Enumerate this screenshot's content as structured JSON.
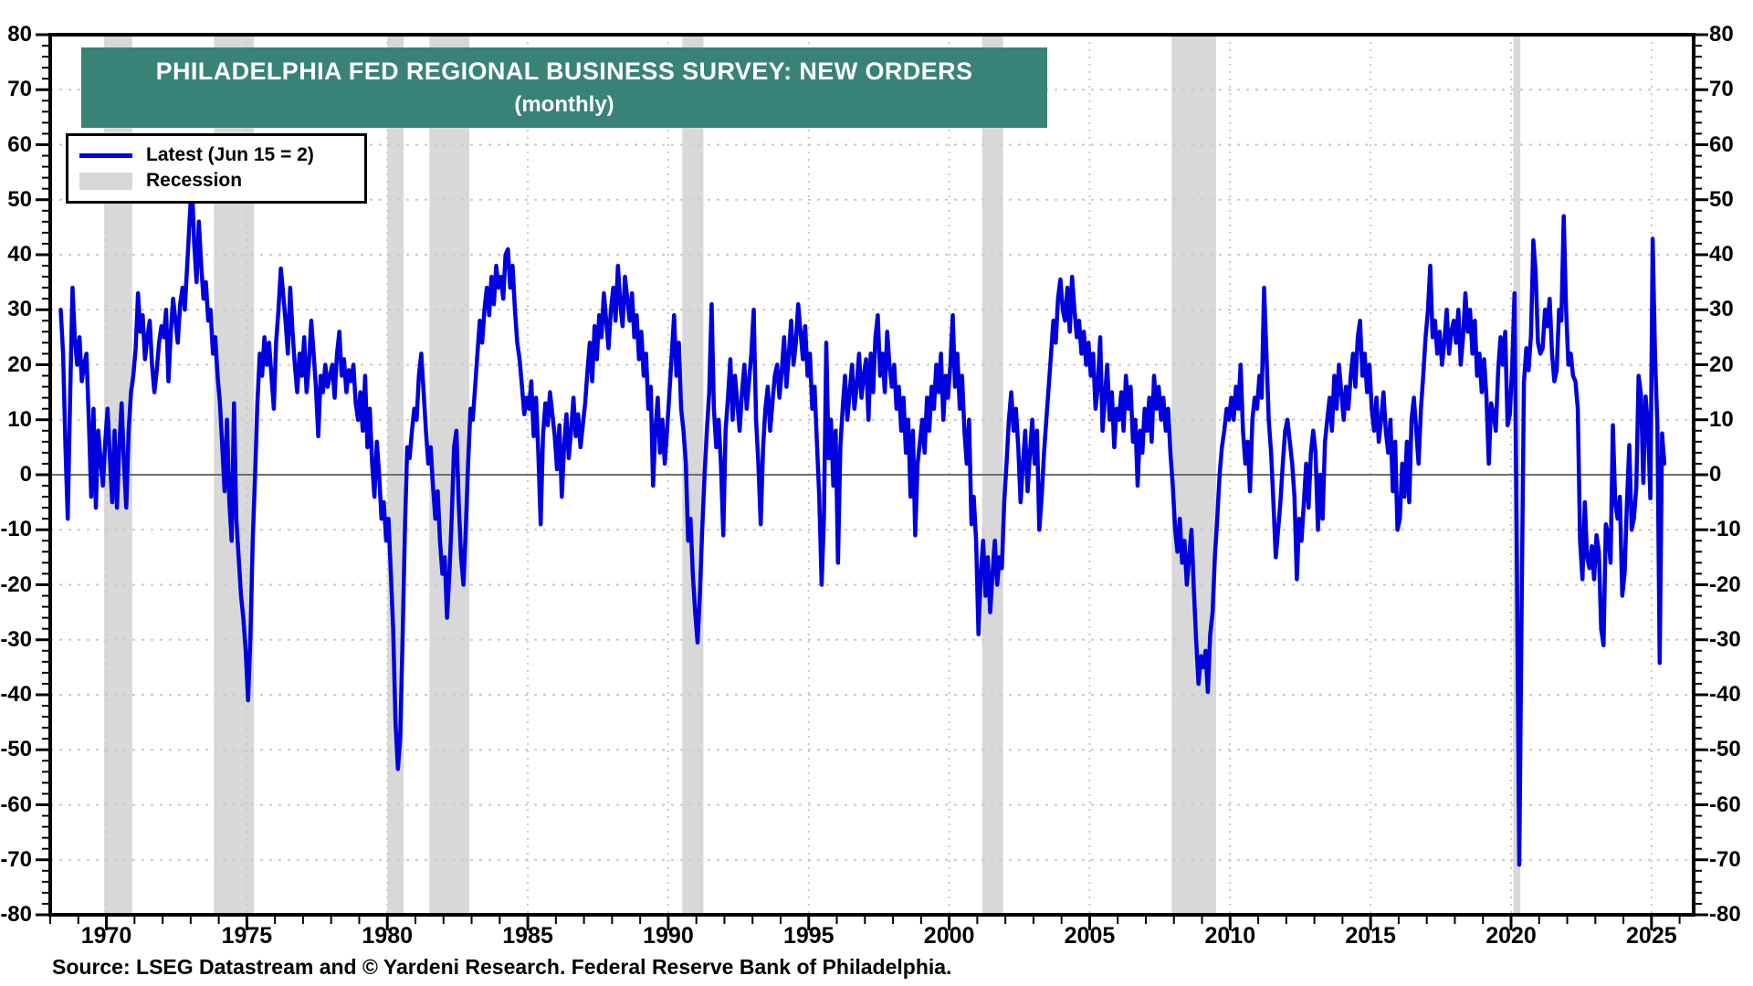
{
  "title": {
    "line1": "PHILADELPHIA FED REGIONAL BUSINESS SURVEY: NEW ORDERS",
    "line2": "(monthly)"
  },
  "legend": {
    "series_label": "Latest (Jun 15 = 2)",
    "recession_label": "Recession"
  },
  "source": "Source: LSEG Datastream and © Yardeni Research. Federal Reserve Bank of Philadelphia.",
  "colors": {
    "line": "#0000DE",
    "banner": "#388278",
    "banner_text": "#FFFFFF",
    "recession": "#D8D8D8",
    "grid": "#C9C9C9",
    "zero_line": "#6E6E6E",
    "frame": "#000000",
    "text": "#000000"
  },
  "chart_data": {
    "type": "line",
    "title": "PHILADELPHIA FED REGIONAL BUSINESS SURVEY: NEW ORDERS",
    "subtitle": "(monthly)",
    "legend_position": "top-left",
    "grid": "dotted",
    "x_axis": {
      "min": 1968.0,
      "max": 2026.5,
      "tick_labels": [
        "1970",
        "1975",
        "1980",
        "1985",
        "1990",
        "1995",
        "2000",
        "2005",
        "2010",
        "2015",
        "2020",
        "2025"
      ],
      "minor_tick_interval_years": 1
    },
    "y_axis": {
      "min": -80,
      "max": 80,
      "major_tick_interval": 10,
      "minor_tick_interval": 2,
      "tick_labels": [
        "80",
        "70",
        "60",
        "50",
        "40",
        "30",
        "20",
        "10",
        "0",
        "-10",
        "-20",
        "-30",
        "-40",
        "-50",
        "-60",
        "-70",
        "-80"
      ]
    },
    "series": {
      "name": "Latest (Jun 15 = 2)",
      "frequency": "monthly",
      "latest_point": {
        "label": "Jun 15",
        "value": 2
      },
      "monthly_by_year": {
        "1968": [
          30,
          22,
          5,
          -8,
          14,
          34,
          25,
          20
        ],
        "1969": [
          25,
          17,
          20,
          22,
          10,
          -4,
          12,
          -6,
          8,
          3,
          -2,
          6
        ],
        "1970": [
          12,
          3,
          -5,
          8,
          -6,
          5,
          13,
          2,
          -6,
          8,
          15,
          18
        ],
        "1971": [
          23,
          33,
          26,
          29,
          21,
          25,
          28,
          20,
          15,
          19,
          24,
          27
        ],
        "1972": [
          25,
          30,
          17,
          26,
          32,
          28,
          24,
          31,
          34,
          30,
          38,
          46
        ],
        "1973": [
          53.5,
          42,
          35,
          46,
          38,
          32,
          35,
          28,
          30,
          22,
          25,
          18
        ],
        "1974": [
          13,
          5,
          -3,
          10,
          -5,
          -12,
          13,
          -8,
          -15,
          -22,
          -26,
          -32
        ],
        "1975": [
          -41,
          -30,
          -12,
          0,
          13,
          22,
          18,
          25,
          20,
          24,
          18,
          12
        ],
        "1976": [
          24,
          30,
          37.5,
          33,
          28,
          22,
          34,
          26,
          20,
          15,
          22,
          18
        ],
        "1977": [
          25,
          15,
          20,
          28,
          22,
          16,
          7,
          18,
          15,
          20,
          16,
          18
        ],
        "1978": [
          20,
          14,
          22,
          26,
          18,
          21,
          15,
          19,
          17,
          20,
          13,
          10
        ],
        "1979": [
          15,
          8,
          18,
          5,
          12,
          2,
          -4,
          6,
          0,
          -8,
          -5,
          -12
        ],
        "1980": [
          -8,
          -18,
          -28,
          -45,
          -53.5,
          -48,
          -30,
          -10,
          5,
          3,
          8,
          12
        ],
        "1981": [
          10,
          18,
          22,
          15,
          8,
          2,
          5,
          -2,
          -8,
          -3,
          -12,
          -18
        ],
        "1982": [
          -15,
          -26,
          -18,
          -8,
          5,
          8,
          -5,
          -15,
          -20,
          -10,
          2,
          12
        ],
        "1983": [
          10,
          16,
          22,
          28,
          24,
          30,
          34,
          29,
          36,
          31,
          38,
          34
        ],
        "1984": [
          36,
          32,
          40,
          41,
          34,
          38,
          30,
          24,
          21,
          16,
          11,
          14
        ],
        "1985": [
          12,
          17,
          7,
          14,
          4,
          -9,
          7,
          13,
          9,
          15,
          11,
          7
        ],
        "1986": [
          1,
          9,
          -4,
          5,
          11,
          3,
          8,
          14,
          7,
          11,
          5,
          9
        ],
        "1987": [
          13,
          19,
          24,
          17,
          27,
          21,
          29,
          25,
          33,
          28,
          23,
          30
        ],
        "1988": [
          34,
          28,
          38,
          31,
          27,
          36,
          32,
          28,
          33,
          25,
          29,
          21
        ],
        "1989": [
          26,
          18,
          22,
          12,
          16,
          -2,
          8,
          14,
          4,
          10,
          2,
          8
        ],
        "1990": [
          15,
          22,
          29,
          18,
          24,
          12,
          8,
          2,
          -12,
          -8,
          -18,
          -25
        ],
        "1991": [
          -30.5,
          -22,
          -10,
          0,
          8,
          15,
          31,
          12,
          5,
          10,
          2,
          -11
        ],
        "1992": [
          8,
          14,
          21,
          10,
          18,
          13,
          8,
          15,
          20,
          12,
          17,
          22
        ],
        "1993": [
          30,
          10,
          2,
          -9,
          5,
          12,
          16,
          8,
          13,
          18,
          20,
          14
        ],
        "1994": [
          19,
          25,
          16,
          22,
          28,
          20,
          24,
          31,
          26,
          21,
          27,
          18
        ],
        "1995": [
          22,
          12,
          16,
          6,
          -4,
          -20,
          -8,
          24,
          3,
          10,
          -2,
          8
        ],
        "1996": [
          -16,
          5,
          12,
          18,
          10,
          15,
          20,
          12,
          16,
          22,
          14,
          18
        ],
        "1997": [
          21,
          10,
          22,
          15,
          25,
          29,
          18,
          22,
          15,
          26,
          20,
          16
        ],
        "1998": [
          20,
          12,
          16,
          8,
          14,
          4,
          10,
          -4,
          8,
          -11,
          2,
          6
        ],
        "1999": [
          10,
          4,
          14,
          8,
          16,
          12,
          20,
          15,
          22,
          10,
          18,
          14
        ],
        "2000": [
          20,
          29,
          16,
          22,
          12,
          18,
          8,
          2,
          10,
          -9,
          -4,
          -12
        ],
        "2001": [
          -29,
          -18,
          -12,
          -22,
          -15,
          -25,
          -18,
          -12,
          -20,
          -15,
          -17,
          -5
        ],
        "2002": [
          2,
          10,
          15,
          8,
          12,
          5,
          -5,
          2,
          8,
          -3,
          4,
          10
        ],
        "2003": [
          2,
          8,
          -10,
          -4,
          4,
          10,
          16,
          22,
          28,
          24,
          32,
          35.5
        ],
        "2004": [
          30,
          28,
          34,
          26,
          36,
          30,
          25,
          28,
          22,
          26,
          20,
          24
        ],
        "2005": [
          18,
          22,
          12,
          16,
          25,
          8,
          14,
          20,
          10,
          15,
          5,
          12
        ],
        "2006": [
          10,
          15,
          8,
          18,
          12,
          16,
          6,
          10,
          -2,
          8,
          4,
          12
        ],
        "2007": [
          8,
          14,
          6,
          18,
          12,
          16,
          10,
          14,
          8,
          12,
          4,
          -2
        ],
        "2008": [
          -10,
          -14,
          -8,
          -16,
          -12,
          -20,
          -15,
          -10,
          -21,
          -30,
          -38,
          -33
        ],
        "2009": [
          -35,
          -32,
          -39.5,
          -29,
          -25,
          -15,
          -8,
          0,
          5,
          8,
          12,
          10
        ],
        "2010": [
          14,
          10,
          16,
          12,
          20,
          8,
          2,
          6,
          -3,
          10,
          14,
          12
        ],
        "2011": [
          18,
          14,
          34,
          22,
          10,
          4,
          -5,
          -15,
          -10,
          -5,
          2,
          8
        ],
        "2012": [
          10,
          6,
          2,
          -4,
          -19,
          -8,
          -12,
          -5,
          2,
          -6,
          4,
          8
        ],
        "2013": [
          4,
          -10,
          0,
          -8,
          6,
          10,
          14,
          8,
          18,
          12,
          20,
          15
        ],
        "2014": [
          10,
          16,
          12,
          18,
          22,
          16,
          25,
          28,
          18,
          22,
          15,
          20
        ],
        "2015": [
          12,
          8,
          14,
          6,
          10,
          15,
          8,
          4,
          10,
          -3,
          6,
          -10
        ],
        "2016": [
          -8,
          2,
          -4,
          6,
          -5,
          10,
          14,
          8,
          2,
          12,
          18,
          25
        ],
        "2017": [
          30,
          38,
          25,
          28,
          22,
          26,
          20,
          24,
          30,
          22,
          26,
          28
        ],
        "2018": [
          24,
          30,
          20,
          25,
          33,
          26,
          30,
          22,
          28,
          18,
          22,
          15
        ],
        "2019": [
          21,
          14,
          2,
          13,
          11,
          8,
          19,
          25,
          20,
          26,
          9,
          11
        ],
        "2020": [
          20,
          33,
          -16,
          -70.9,
          -25.7,
          16.7,
          23,
          19,
          25.3,
          42.6,
          37,
          24
        ],
        "2021": [
          22,
          23,
          30,
          27,
          32,
          22,
          17,
          19,
          30,
          28,
          47,
          30
        ],
        "2022": [
          20,
          22,
          18,
          17,
          12,
          -12,
          -19,
          -5,
          -15,
          -17,
          -13,
          -19
        ],
        "2023": [
          -11,
          -14,
          -28,
          -31,
          -9,
          -11,
          -16,
          9,
          -5,
          -8,
          -4,
          -22
        ],
        "2024": [
          -17.9,
          -5.2,
          5.4,
          -10,
          -7.9,
          -2.2,
          18,
          14.6,
          -1.5,
          14.2,
          8.9,
          -4.3
        ],
        "2025": [
          42.9,
          21.9,
          8.7,
          -34.2,
          7.5,
          2
        ]
      }
    },
    "recessions": [
      [
        1969.92,
        1970.92
      ],
      [
        1973.83,
        1975.25
      ],
      [
        1980.0,
        1980.58
      ],
      [
        1981.5,
        1982.92
      ],
      [
        1990.5,
        1991.25
      ],
      [
        2001.17,
        2001.92
      ],
      [
        2007.92,
        2009.5
      ],
      [
        2020.08,
        2020.33
      ]
    ]
  }
}
